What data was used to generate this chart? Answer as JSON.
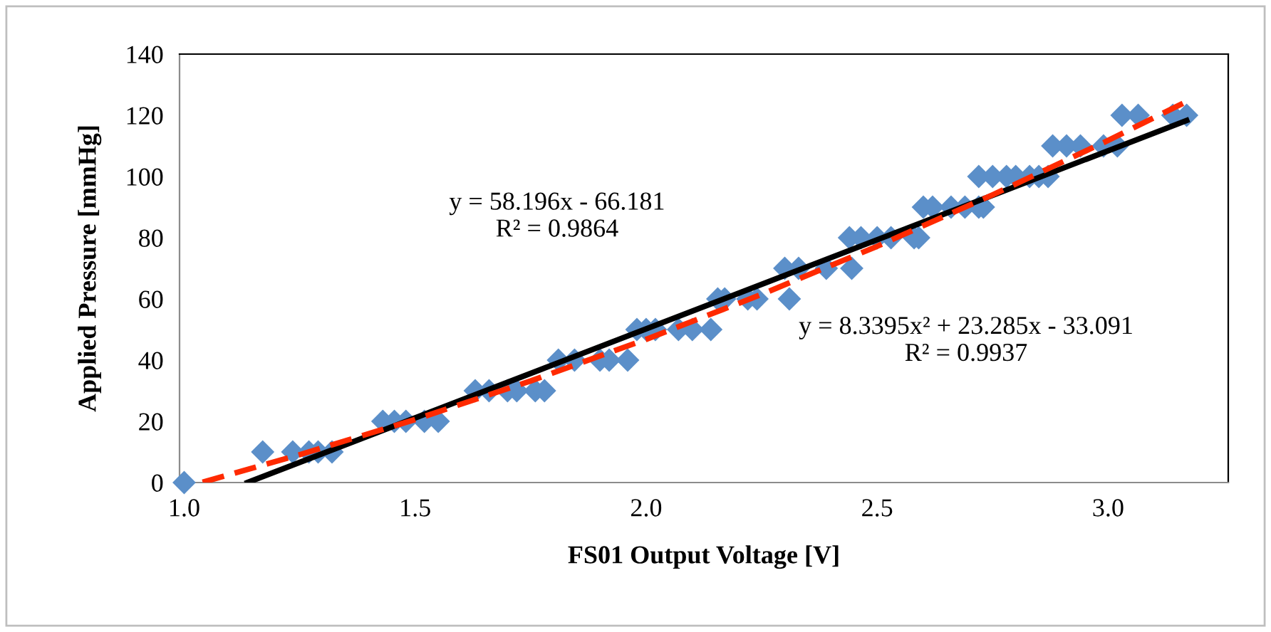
{
  "chart_data": {
    "type": "scatter",
    "xlabel": "FS01 Output Voltage [V]",
    "ylabel": "Applied Pressure [mmHg]",
    "xlim": [
      0.99,
      3.26
    ],
    "xticks": [
      {
        "value": 1.0,
        "label": "1.0"
      },
      {
        "value": 1.5,
        "label": "1.5"
      },
      {
        "value": 2.0,
        "label": "2.0"
      },
      {
        "value": 2.5,
        "label": "2.5"
      },
      {
        "value": 3.0,
        "label": "3.0"
      }
    ],
    "ylim": [
      0,
      140
    ],
    "yticks": [
      0,
      20,
      40,
      60,
      80,
      100,
      120,
      140
    ],
    "grid": false,
    "legend": false,
    "series": [
      {
        "color": "#5b8fc9",
        "marker": "diamond",
        "x": [
          1.0,
          1.17,
          1.235,
          1.27,
          1.29,
          1.32,
          1.43,
          1.455,
          1.48,
          1.52,
          1.55,
          1.63,
          1.66,
          1.7,
          1.72,
          1.76,
          1.78,
          1.81,
          1.845,
          1.9,
          1.92,
          1.96,
          1.98,
          2.0,
          2.02,
          2.07,
          2.1,
          2.14,
          2.155,
          2.17,
          2.22,
          2.24,
          2.31,
          2.3,
          2.33,
          2.39,
          2.445,
          2.44,
          2.465,
          2.5,
          2.53,
          2.58,
          2.59,
          2.6,
          2.62,
          2.66,
          2.69,
          2.72,
          2.73,
          2.72,
          2.75,
          2.78,
          2.8,
          2.83,
          2.85,
          2.87,
          2.88,
          2.91,
          2.94,
          2.99,
          3.02,
          3.03,
          3.065,
          3.14,
          3.17
        ],
        "values": [
          0,
          10,
          10,
          10,
          10,
          10,
          20,
          20,
          20,
          20,
          20,
          30,
          30,
          30,
          30,
          30,
          30,
          40,
          40,
          40,
          40,
          40,
          50,
          50,
          50,
          50,
          50,
          50,
          60,
          60,
          60,
          60,
          60,
          70,
          70,
          70,
          70,
          80,
          80,
          80,
          80,
          80,
          80,
          90,
          90,
          90,
          90,
          90,
          90,
          100,
          100,
          100,
          100,
          100,
          100,
          100,
          110,
          110,
          110,
          110,
          110,
          120,
          120,
          120,
          120
        ]
      },
      {
        "type": "line",
        "color": "#000000",
        "line_style": "solid",
        "marker": "none",
        "x": [
          1.137,
          3.17
        ],
        "values": [
          0,
          118.3
        ]
      },
      {
        "type": "line",
        "color": "#ff2a00",
        "line_style": "dashed",
        "marker": "none",
        "x": [
          1.04,
          1.25,
          1.5,
          1.75,
          2.0,
          2.25,
          2.5,
          2.75,
          3.0,
          3.17
        ],
        "values": [
          0.1,
          9.1,
          20.6,
          33.2,
          46.8,
          61.5,
          77.2,
          94.0,
          111.8,
          124.5
        ]
      }
    ],
    "annotations": [
      "y = 58.196x - 66.181\nR² = 0.9864",
      "y = 8.3395x² + 23.285x - 33.091\nR² = 0.9937"
    ]
  }
}
